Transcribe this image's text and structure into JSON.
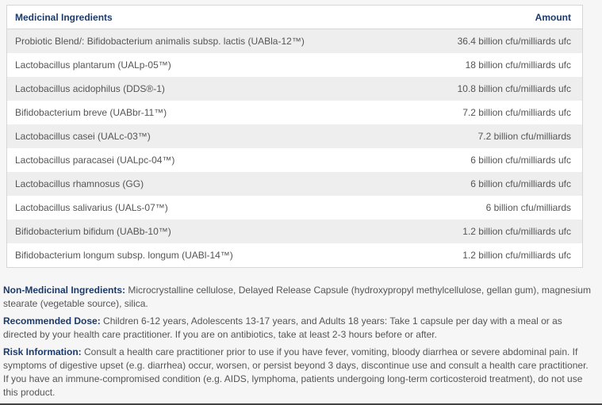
{
  "table": {
    "headers": {
      "ingredient": "Medicinal Ingredients",
      "amount": "Amount"
    },
    "rows": [
      {
        "ingredient": "Probiotic Blend/: Bifidobacterium animalis subsp. lactis (UABla-12™)",
        "amount": "36.4 billion cfu/milliards ufc"
      },
      {
        "ingredient": "Lactobacillus plantarum (UALp-05™)",
        "amount": "18 billion cfu/milliards ufc"
      },
      {
        "ingredient": "Lactobacillus acidophilus (DDS®-1)",
        "amount": "10.8 billion cfu/milliards ufc"
      },
      {
        "ingredient": "Bifidobacterium breve (UABbr-11™)",
        "amount": "7.2 billion cfu/milliards ufc"
      },
      {
        "ingredient": "Lactobacillus casei (UALc-03™)",
        "amount": "7.2 billion cfu/milliards"
      },
      {
        "ingredient": "Lactobacillus paracasei (UALpc-04™)",
        "amount": "6 billion cfu/milliards ufc"
      },
      {
        "ingredient": "Lactobacillus rhamnosus (GG)",
        "amount": "6 billion cfu/milliards ufc"
      },
      {
        "ingredient": "Lactobacillus salivarius (UALs-07™)",
        "amount": "6 billion cfu/milliards"
      },
      {
        "ingredient": "Bifidobacterium bifidum (UABb-10™)",
        "amount": "1.2 billion cfu/milliards ufc"
      },
      {
        "ingredient": "Bifidobacterium longum subsp. longum (UABl-14™)",
        "amount": "1.2 billion cfu/milliards ufc"
      }
    ]
  },
  "info": [
    {
      "label": "Non-Medicinal Ingredients:",
      "text": " Microcrystalline cellulose, Delayed Release Capsule (hydroxypropyl methylcellulose, gellan gum), magnesium stearate (vegetable source), silica."
    },
    {
      "label": "Recommended Dose:",
      "text": " Children 6-12 years, Adolescents 13-17 years, and Adults 18 years: Take 1 capsule per day with a meal or as directed by your health care practitioner. If you are on antibiotics, take at least 2-3 hours before or after."
    },
    {
      "label": "Risk Information:",
      "text": " Consult a health care practitioner prior to use if you have fever, vomiting, bloody diarrhea or severe abdominal pain. If symptoms of digestive upset (e.g. diarrhea) occur, worsen, or persist beyond 3 days, discontinue use and consult a health care practitioner. If you have an immune-compromised condition (e.g. AIDS, lymphoma, patients undergoing long-term corticosteroid treatment), do not use this product."
    }
  ],
  "colors": {
    "heading": "#1b3a6b",
    "text": "#555555",
    "stripe": "#eeeeee"
  }
}
